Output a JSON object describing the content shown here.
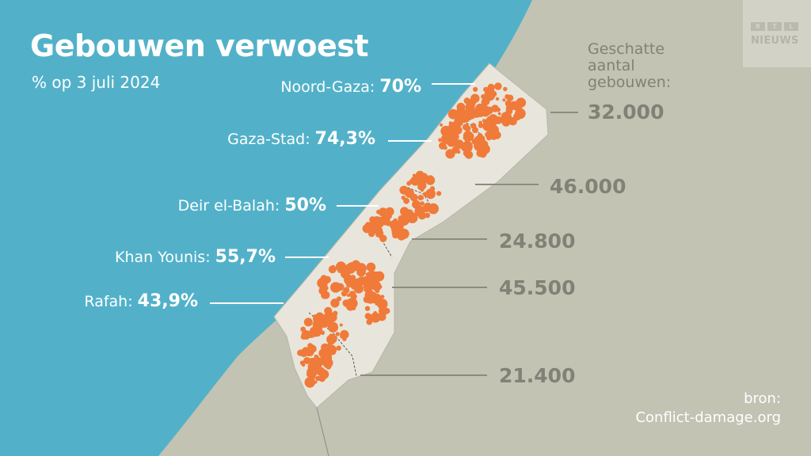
{
  "title": "Gebouwen verwoest",
  "subtitle": "% op 3 juli 2024",
  "logo": {
    "letters": [
      "R",
      "T",
      "L"
    ],
    "name": "NIEUWS"
  },
  "estimate_header": "Geschatte aantal gebouwen:",
  "regions": [
    {
      "name": "Noord-Gaza:",
      "percent": "70%",
      "buildings": "32.000"
    },
    {
      "name": "Gaza-Stad:",
      "percent": "74,3%",
      "buildings": "46.000"
    },
    {
      "name": "Deir el-Balah:",
      "percent": "50%",
      "buildings": "24.800"
    },
    {
      "name": "Khan Younis:",
      "percent": "55,7%",
      "buildings": "45.500"
    },
    {
      "name": "Rafah:",
      "percent": "43,9%",
      "buildings": "21.400"
    }
  ],
  "source": {
    "label": "bron:",
    "name": "Conflict-damage.org"
  },
  "colors": {
    "sea": "#52b1c9",
    "land": "#c2c3b3",
    "strip": "#e8e6dc",
    "damage": "#f07a3a",
    "leader_white": "#ffffff",
    "leader_gray": "#8a8c80"
  }
}
